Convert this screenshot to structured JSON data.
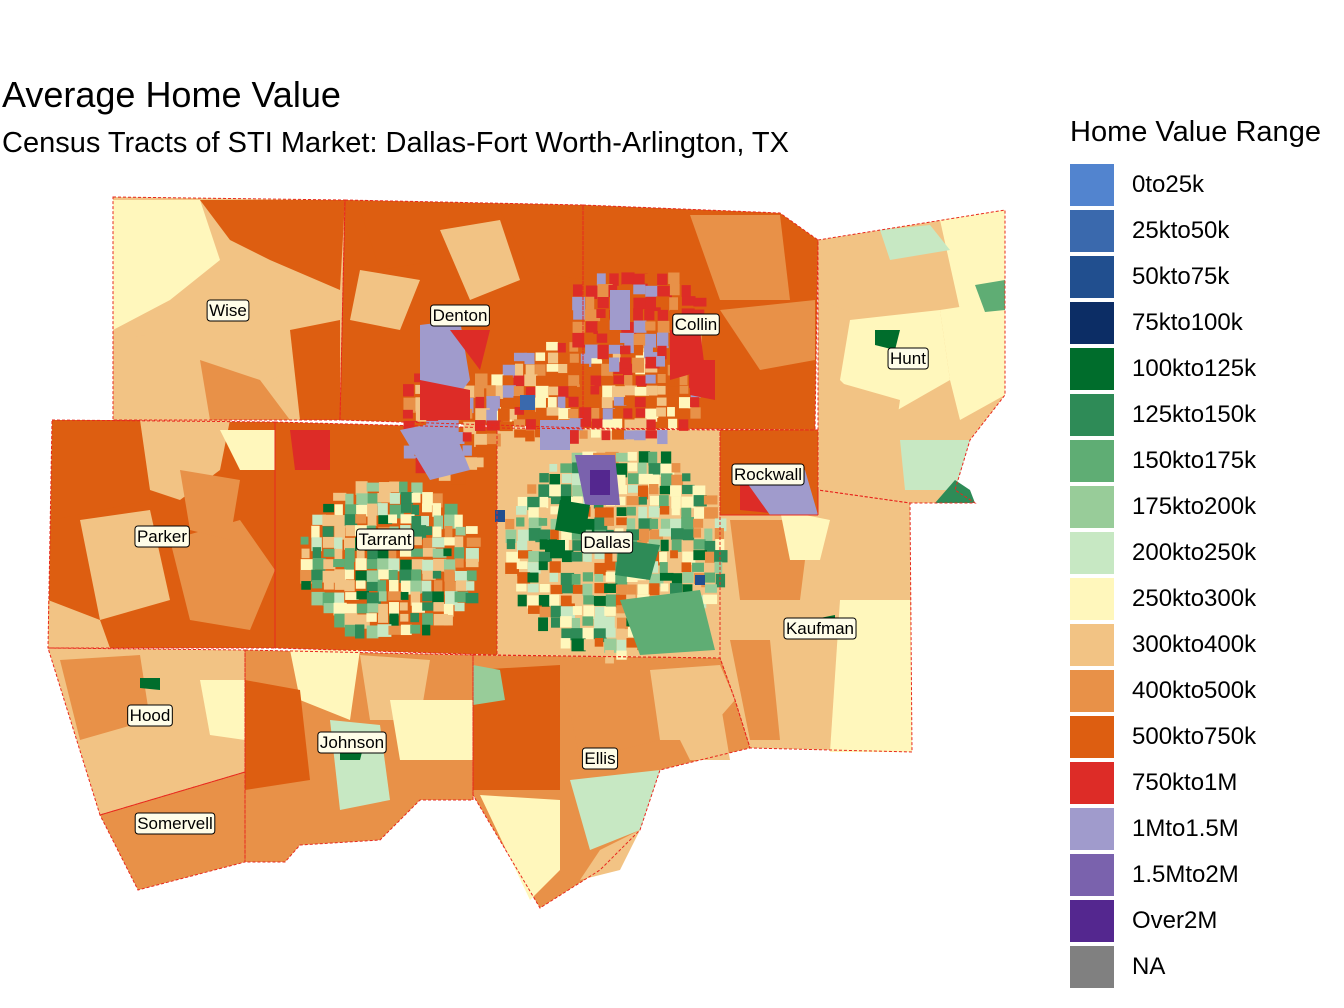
{
  "title": "Average Home Value",
  "subtitle": "Census Tracts of STI Market: Dallas-Fort Worth-Arlington, TX",
  "legend": {
    "title": "Home Value Range",
    "items": [
      {
        "label": "0to25k",
        "color": "#5284cf"
      },
      {
        "label": "25kto50k",
        "color": "#3a69ad"
      },
      {
        "label": "50kto75k",
        "color": "#214f8f"
      },
      {
        "label": "75kto100k",
        "color": "#0c2d65"
      },
      {
        "label": "100kto125k",
        "color": "#006d2c"
      },
      {
        "label": "125kto150k",
        "color": "#2e8b57"
      },
      {
        "label": "150kto175k",
        "color": "#5fad74"
      },
      {
        "label": "175kto200k",
        "color": "#98cc99"
      },
      {
        "label": "200kto250k",
        "color": "#c7e8c3"
      },
      {
        "label": "250kto300k",
        "color": "#fff7bc"
      },
      {
        "label": "300kto400k",
        "color": "#f2c384"
      },
      {
        "label": "400kto500k",
        "color": "#e89148"
      },
      {
        "label": "500kto750k",
        "color": "#dd5e11"
      },
      {
        "label": "750kto1M",
        "color": "#dd2c27"
      },
      {
        "label": "1Mto1.5M",
        "color": "#a09bcc"
      },
      {
        "label": "1.5Mto2M",
        "color": "#7a62ad"
      },
      {
        "label": "Over2M",
        "color": "#54278f"
      },
      {
        "label": "NA",
        "color": "#808080"
      }
    ]
  },
  "counties": [
    {
      "name": "Wise"
    },
    {
      "name": "Denton"
    },
    {
      "name": "Collin"
    },
    {
      "name": "Hunt"
    },
    {
      "name": "Rockwall"
    },
    {
      "name": "Parker"
    },
    {
      "name": "Tarrant"
    },
    {
      "name": "Dallas"
    },
    {
      "name": "Kaufman"
    },
    {
      "name": "Hood"
    },
    {
      "name": "Johnson"
    },
    {
      "name": "Ellis"
    },
    {
      "name": "Somervell"
    }
  ]
}
